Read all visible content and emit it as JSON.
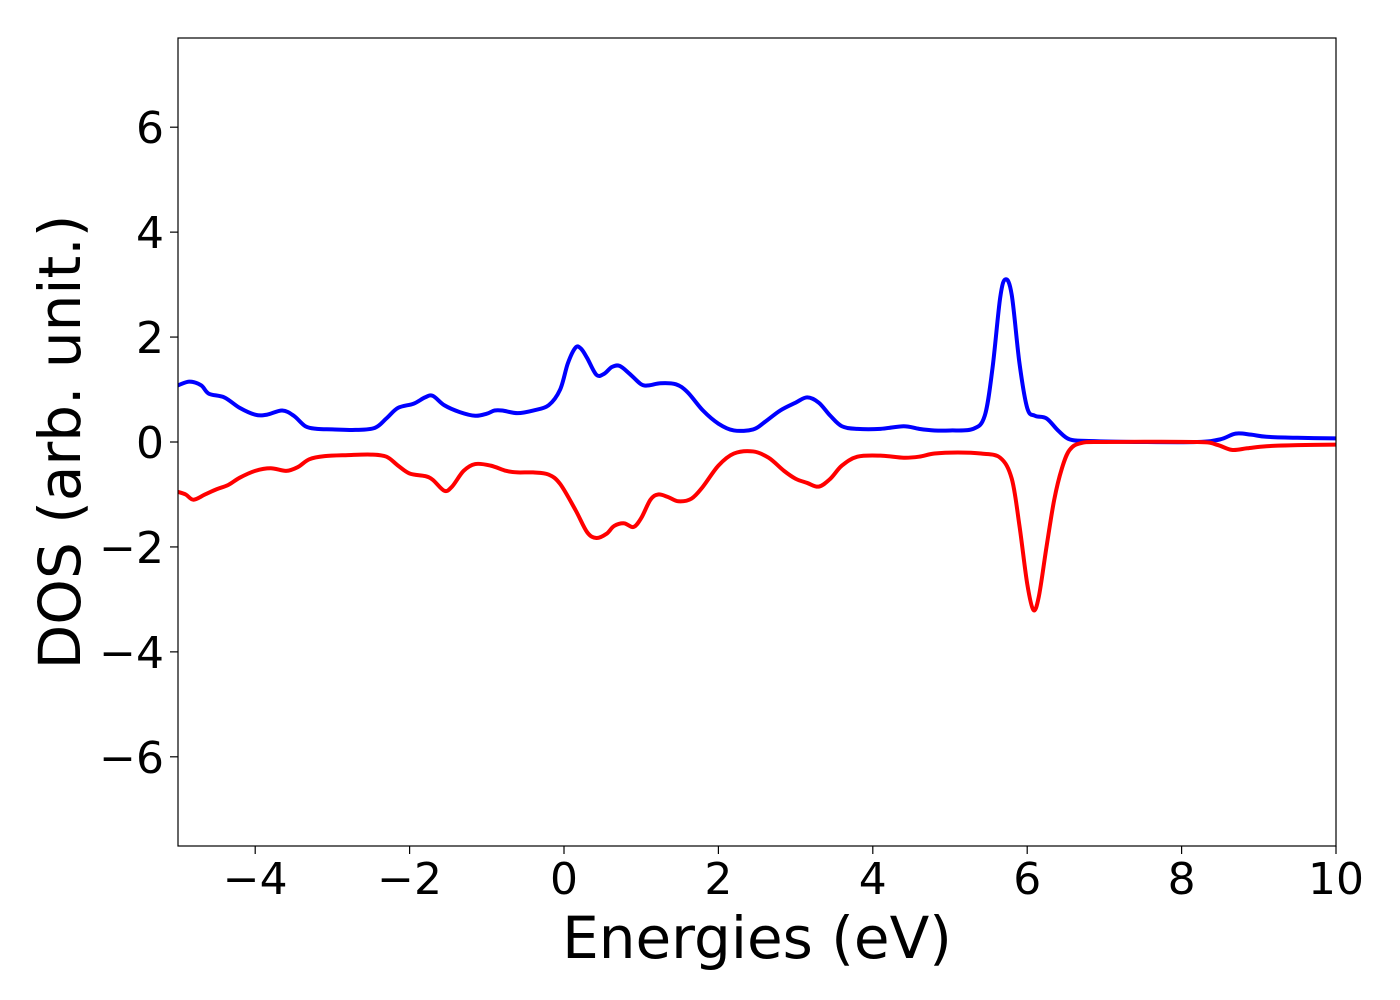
{
  "chart_data": {
    "type": "line",
    "title": "",
    "xlabel": "Energies (eV)",
    "ylabel": "DOS (arb. unit.)",
    "xlim": [
      -5,
      10
    ],
    "ylim": [
      -7.7,
      7.7
    ],
    "xticks": [
      -4,
      -2,
      0,
      2,
      4,
      6,
      8,
      10
    ],
    "xtick_labels": [
      "−4",
      "−2",
      "0",
      "2",
      "4",
      "6",
      "8",
      "10"
    ],
    "yticks": [
      -6,
      -4,
      -2,
      0,
      2,
      4,
      6
    ],
    "ytick_labels": [
      "−6",
      "−4",
      "−2",
      "0",
      "2",
      "4",
      "6"
    ],
    "grid": false,
    "legend": "none",
    "series": [
      {
        "color": "#0000ff",
        "points": [
          [
            -5.0,
            1.08
          ],
          [
            -4.85,
            1.15
          ],
          [
            -4.7,
            1.08
          ],
          [
            -4.6,
            0.92
          ],
          [
            -4.4,
            0.85
          ],
          [
            -4.2,
            0.65
          ],
          [
            -4.0,
            0.52
          ],
          [
            -3.85,
            0.52
          ],
          [
            -3.65,
            0.6
          ],
          [
            -3.5,
            0.5
          ],
          [
            -3.35,
            0.3
          ],
          [
            -3.2,
            0.25
          ],
          [
            -3.0,
            0.24
          ],
          [
            -2.7,
            0.23
          ],
          [
            -2.45,
            0.27
          ],
          [
            -2.3,
            0.45
          ],
          [
            -2.15,
            0.65
          ],
          [
            -1.95,
            0.73
          ],
          [
            -1.8,
            0.85
          ],
          [
            -1.7,
            0.88
          ],
          [
            -1.55,
            0.7
          ],
          [
            -1.35,
            0.57
          ],
          [
            -1.15,
            0.5
          ],
          [
            -1.0,
            0.54
          ],
          [
            -0.9,
            0.6
          ],
          [
            -0.8,
            0.6
          ],
          [
            -0.6,
            0.55
          ],
          [
            -0.4,
            0.6
          ],
          [
            -0.2,
            0.7
          ],
          [
            -0.05,
            1.0
          ],
          [
            0.05,
            1.5
          ],
          [
            0.15,
            1.8
          ],
          [
            0.22,
            1.78
          ],
          [
            0.3,
            1.6
          ],
          [
            0.42,
            1.28
          ],
          [
            0.52,
            1.3
          ],
          [
            0.62,
            1.43
          ],
          [
            0.72,
            1.45
          ],
          [
            0.85,
            1.3
          ],
          [
            1.0,
            1.1
          ],
          [
            1.1,
            1.08
          ],
          [
            1.25,
            1.12
          ],
          [
            1.45,
            1.1
          ],
          [
            1.6,
            0.95
          ],
          [
            1.8,
            0.6
          ],
          [
            2.0,
            0.35
          ],
          [
            2.2,
            0.22
          ],
          [
            2.45,
            0.24
          ],
          [
            2.6,
            0.38
          ],
          [
            2.8,
            0.6
          ],
          [
            3.0,
            0.75
          ],
          [
            3.15,
            0.85
          ],
          [
            3.3,
            0.75
          ],
          [
            3.45,
            0.5
          ],
          [
            3.6,
            0.3
          ],
          [
            3.8,
            0.25
          ],
          [
            4.1,
            0.25
          ],
          [
            4.4,
            0.3
          ],
          [
            4.6,
            0.25
          ],
          [
            4.8,
            0.22
          ],
          [
            5.0,
            0.22
          ],
          [
            5.3,
            0.25
          ],
          [
            5.45,
            0.5
          ],
          [
            5.55,
            1.4
          ],
          [
            5.65,
            2.75
          ],
          [
            5.72,
            3.1
          ],
          [
            5.8,
            2.8
          ],
          [
            5.9,
            1.5
          ],
          [
            6.0,
            0.65
          ],
          [
            6.1,
            0.5
          ],
          [
            6.25,
            0.45
          ],
          [
            6.4,
            0.22
          ],
          [
            6.55,
            0.05
          ],
          [
            6.8,
            0.02
          ],
          [
            7.5,
            0.0
          ],
          [
            8.2,
            0.0
          ],
          [
            8.5,
            0.05
          ],
          [
            8.7,
            0.16
          ],
          [
            8.9,
            0.14
          ],
          [
            9.1,
            0.1
          ],
          [
            9.5,
            0.08
          ],
          [
            10.0,
            0.07
          ]
        ]
      },
      {
        "color": "#ff0000",
        "points": [
          [
            -5.0,
            -0.95
          ],
          [
            -4.9,
            -1.0
          ],
          [
            -4.8,
            -1.1
          ],
          [
            -4.65,
            -1.0
          ],
          [
            -4.5,
            -0.9
          ],
          [
            -4.35,
            -0.82
          ],
          [
            -4.2,
            -0.68
          ],
          [
            -4.0,
            -0.55
          ],
          [
            -3.8,
            -0.5
          ],
          [
            -3.6,
            -0.55
          ],
          [
            -3.45,
            -0.48
          ],
          [
            -3.3,
            -0.33
          ],
          [
            -3.1,
            -0.27
          ],
          [
            -2.8,
            -0.25
          ],
          [
            -2.5,
            -0.24
          ],
          [
            -2.3,
            -0.28
          ],
          [
            -2.15,
            -0.45
          ],
          [
            -2.0,
            -0.6
          ],
          [
            -1.8,
            -0.65
          ],
          [
            -1.7,
            -0.72
          ],
          [
            -1.55,
            -0.93
          ],
          [
            -1.45,
            -0.85
          ],
          [
            -1.3,
            -0.55
          ],
          [
            -1.15,
            -0.42
          ],
          [
            -0.95,
            -0.45
          ],
          [
            -0.75,
            -0.55
          ],
          [
            -0.6,
            -0.58
          ],
          [
            -0.4,
            -0.58
          ],
          [
            -0.2,
            -0.62
          ],
          [
            -0.05,
            -0.8
          ],
          [
            0.15,
            -1.3
          ],
          [
            0.3,
            -1.72
          ],
          [
            0.42,
            -1.83
          ],
          [
            0.55,
            -1.75
          ],
          [
            0.65,
            -1.6
          ],
          [
            0.78,
            -1.55
          ],
          [
            0.9,
            -1.62
          ],
          [
            1.0,
            -1.45
          ],
          [
            1.12,
            -1.1
          ],
          [
            1.22,
            -1.0
          ],
          [
            1.35,
            -1.05
          ],
          [
            1.48,
            -1.13
          ],
          [
            1.65,
            -1.08
          ],
          [
            1.8,
            -0.85
          ],
          [
            2.0,
            -0.45
          ],
          [
            2.2,
            -0.22
          ],
          [
            2.45,
            -0.18
          ],
          [
            2.65,
            -0.3
          ],
          [
            2.85,
            -0.55
          ],
          [
            3.0,
            -0.7
          ],
          [
            3.15,
            -0.78
          ],
          [
            3.3,
            -0.85
          ],
          [
            3.45,
            -0.7
          ],
          [
            3.6,
            -0.45
          ],
          [
            3.8,
            -0.28
          ],
          [
            4.1,
            -0.26
          ],
          [
            4.4,
            -0.3
          ],
          [
            4.6,
            -0.28
          ],
          [
            4.8,
            -0.22
          ],
          [
            5.1,
            -0.2
          ],
          [
            5.4,
            -0.22
          ],
          [
            5.65,
            -0.3
          ],
          [
            5.8,
            -0.7
          ],
          [
            5.9,
            -1.6
          ],
          [
            6.0,
            -2.7
          ],
          [
            6.08,
            -3.2
          ],
          [
            6.15,
            -2.95
          ],
          [
            6.25,
            -2.0
          ],
          [
            6.35,
            -1.1
          ],
          [
            6.45,
            -0.5
          ],
          [
            6.55,
            -0.15
          ],
          [
            6.7,
            -0.02
          ],
          [
            7.0,
            0.0
          ],
          [
            8.2,
            0.0
          ],
          [
            8.45,
            -0.05
          ],
          [
            8.65,
            -0.15
          ],
          [
            8.85,
            -0.12
          ],
          [
            9.1,
            -0.08
          ],
          [
            9.5,
            -0.06
          ],
          [
            10.0,
            -0.05
          ]
        ]
      }
    ]
  }
}
